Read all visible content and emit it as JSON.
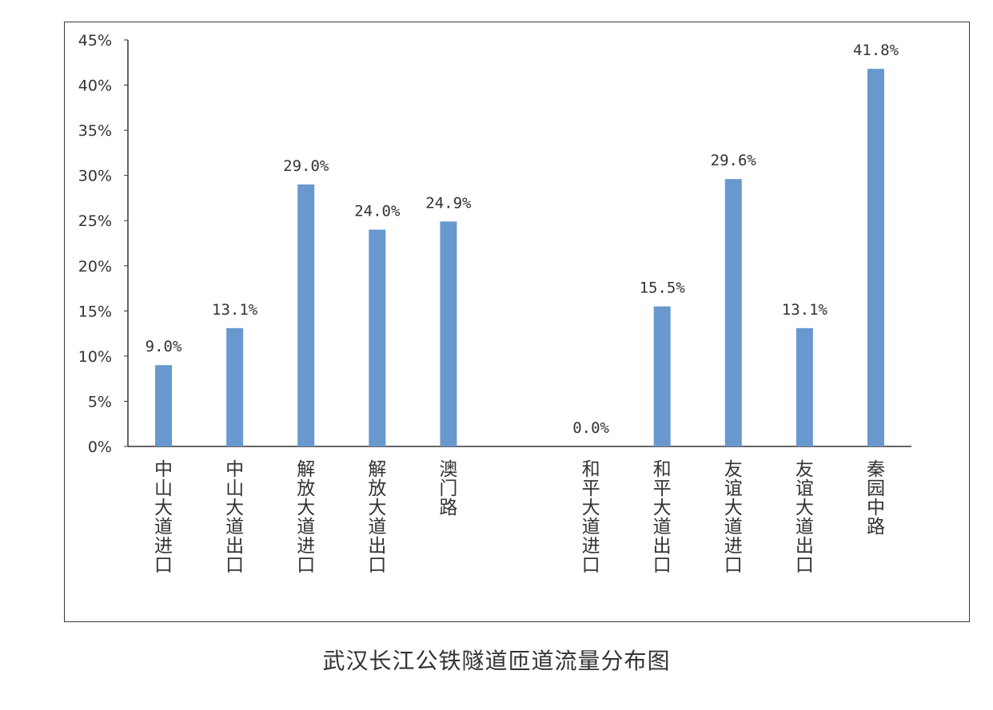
{
  "caption": "武汉长江公铁隧道匝道流量分布图",
  "colors": {
    "bar": "#6898cd",
    "axis": "#333333",
    "text": "#333333"
  },
  "chart_data": {
    "type": "bar",
    "title": "",
    "xlabel": "",
    "ylabel": "",
    "ylim": [
      0,
      45
    ],
    "yticks": [
      "0%",
      "5%",
      "10%",
      "15%",
      "20%",
      "25%",
      "30%",
      "35%",
      "40%",
      "45%"
    ],
    "grid": false,
    "legend": "none",
    "categories": [
      "中山大道进口",
      "中山大道出口",
      "解放大道进口",
      "解放大道出口",
      "澳门路",
      "",
      "和平大道进口",
      "和平大道出口",
      "友谊大道进口",
      "友谊大道出口",
      "秦园中路"
    ],
    "values": [
      9.0,
      13.1,
      29.0,
      24.0,
      24.9,
      null,
      0.0,
      15.5,
      29.6,
      13.1,
      41.8
    ],
    "data_labels": [
      "9.0%",
      "13.1%",
      "29.0%",
      "24.0%",
      "24.9%",
      "",
      "0.0%",
      "15.5%",
      "29.6%",
      "13.1%",
      "41.8%"
    ]
  }
}
